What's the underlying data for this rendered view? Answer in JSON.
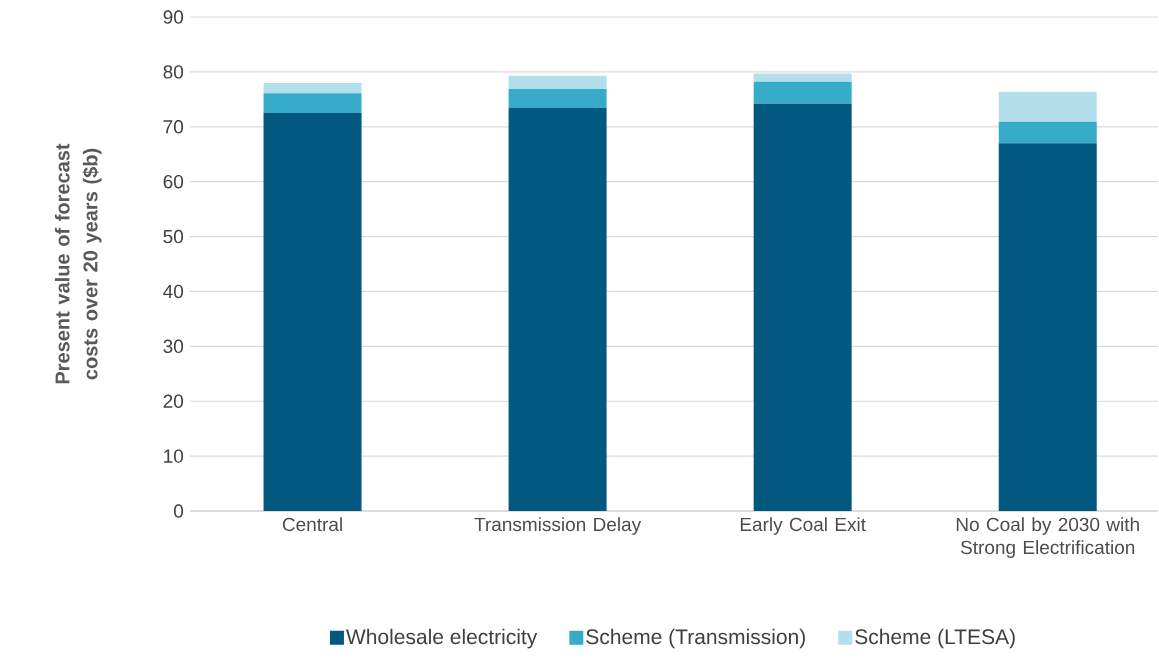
{
  "chart_data": {
    "type": "bar",
    "stacked": true,
    "ylabel": "Present value of forecast costs over 20 years ($b)",
    "categories": [
      "Central",
      "Transmission Delay",
      "Early Coal Exit",
      "No Coal by 2030 with Strong Electrification"
    ],
    "series": [
      {
        "name": "Wholesale electricity",
        "color": "#02587f",
        "values": [
          72.5,
          73.4,
          74.2,
          67.0
        ]
      },
      {
        "name": "Scheme (Transmission)",
        "color": "#37acc8",
        "values": [
          3.6,
          3.5,
          4.0,
          3.9
        ]
      },
      {
        "name": "Scheme (LTESA)",
        "color": "#b3deec",
        "values": [
          1.9,
          2.4,
          1.5,
          5.5
        ]
      }
    ],
    "ylim": [
      0,
      90
    ],
    "yticks": [
      0,
      10,
      20,
      30,
      40,
      50,
      60,
      70,
      80,
      90
    ],
    "grid": "y",
    "legend": "bottom"
  }
}
